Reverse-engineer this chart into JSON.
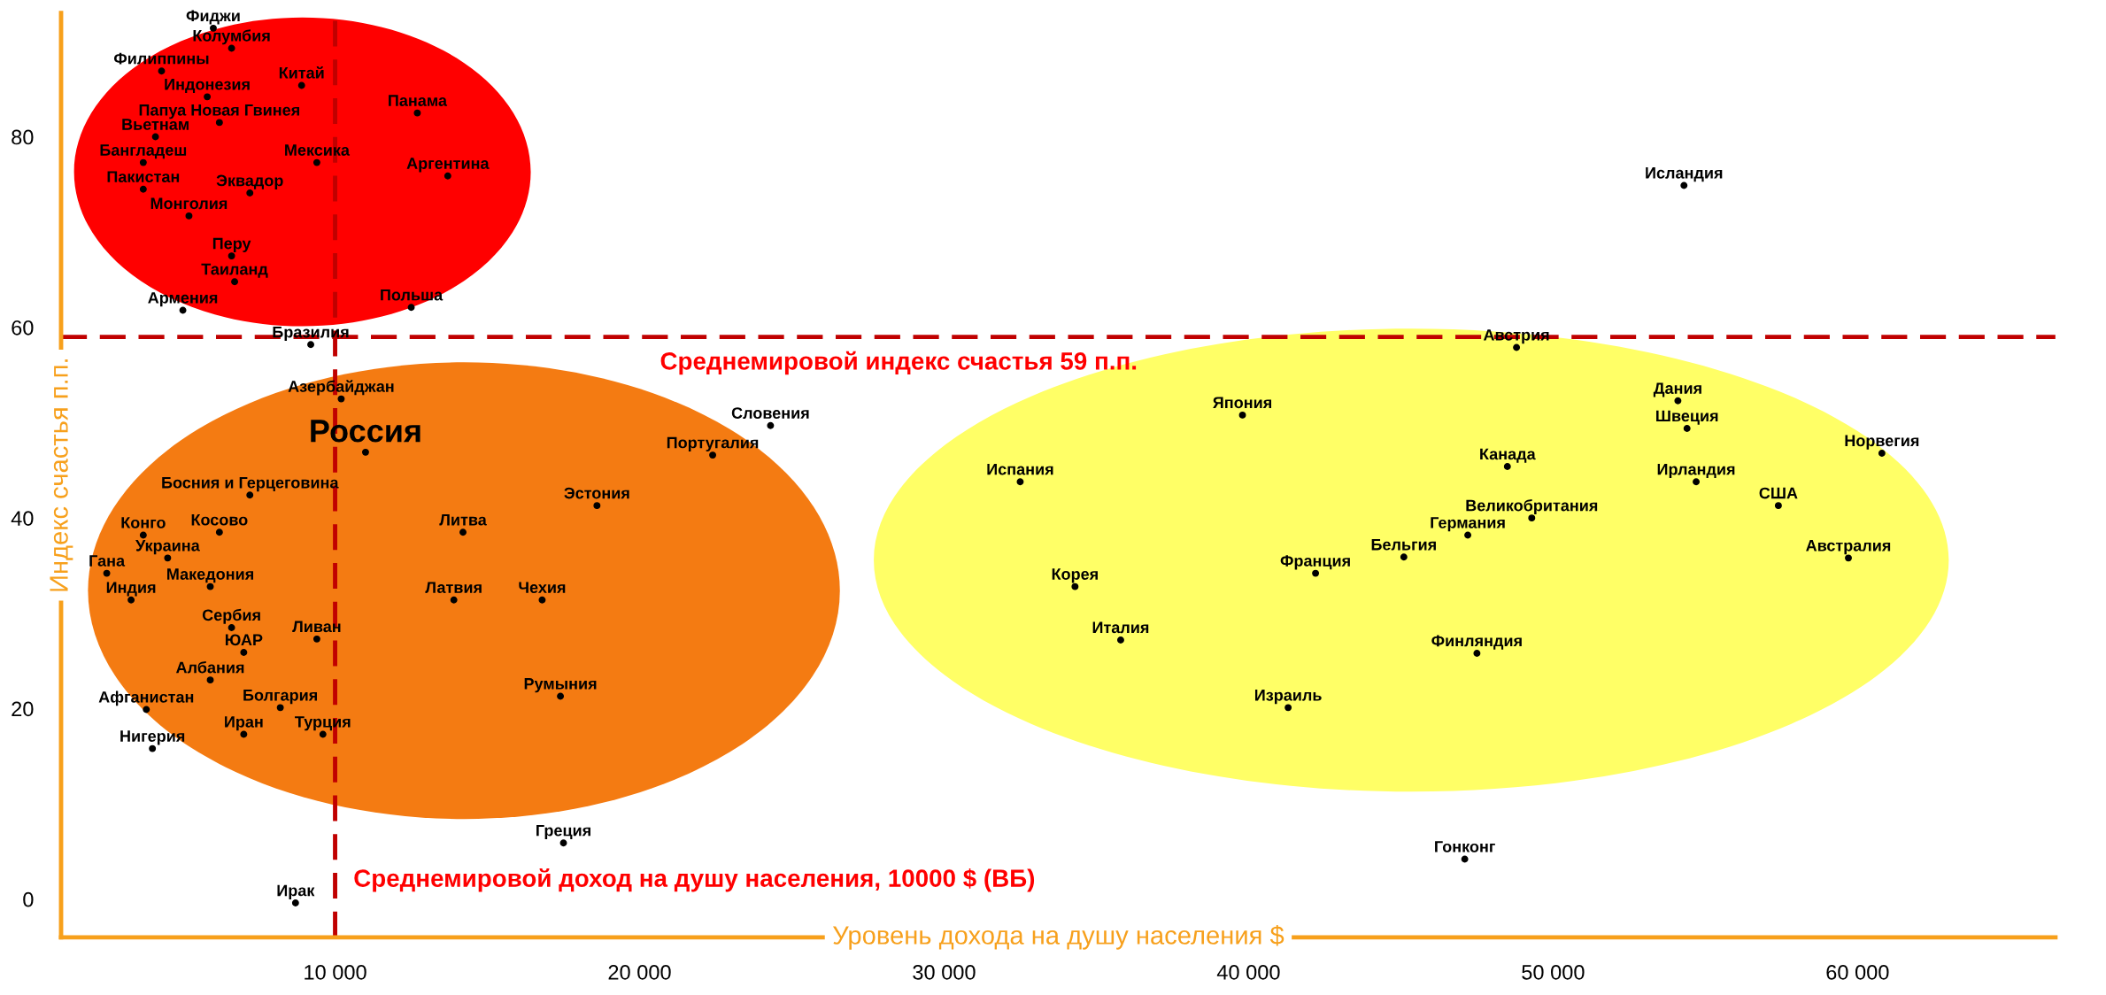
{
  "chart_data": {
    "type": "scatter",
    "xlabel": "Уровень дохода на душу населения $",
    "ylabel": "Индекс счастья п.п.",
    "xlim": [
      1000,
      66500
    ],
    "ylim": [
      -4,
      93
    ],
    "xticks": [
      {
        "value": 10000,
        "label": "10 000"
      },
      {
        "value": 20000,
        "label": "20 000"
      },
      {
        "value": 30000,
        "label": "30 000"
      },
      {
        "value": 40000,
        "label": "40 000"
      },
      {
        "value": 50000,
        "label": "50 000"
      },
      {
        "value": 60000,
        "label": "60 000"
      }
    ],
    "yticks": [
      0,
      20,
      40,
      60,
      80
    ],
    "grid": false,
    "legend": false,
    "marker": "circle",
    "ref_lines": [
      {
        "axis": "y",
        "value": 59,
        "label": "Среднемировой индекс счастья 59 п.п.",
        "color": "#c00000",
        "line_style": "dashed"
      },
      {
        "axis": "x",
        "value": 10000,
        "label": "Среднемировой доход на душу населения, 10000 $ (ВБ)",
        "color": "#c00000",
        "line_style": "dashed"
      }
    ],
    "series": [
      {
        "color": "#000000",
        "x": [
          6000,
          6600,
          4300,
          5800,
          8900,
          12700,
          6200,
          4100,
          9400,
          13700,
          3700,
          3700,
          7200,
          5200,
          6600,
          6700,
          5000,
          12500,
          54300,
          9200,
          48800,
          10200,
          39800,
          54100,
          54400,
          24300,
          22400,
          60800,
          32500,
          48500,
          54700,
          7200,
          18600,
          57400,
          49300,
          3700,
          6200,
          14200,
          47200,
          4500,
          45100,
          59700,
          2500,
          34300,
          42200,
          3300,
          5900,
          13900,
          16800,
          6600,
          9400,
          7000,
          35800,
          47500,
          5900,
          17400,
          3800,
          8200,
          41300,
          4000,
          7000,
          9600,
          17500,
          47100,
          8700
        ],
        "values": [
          91.4,
          89.3,
          86.9,
          84.2,
          85.4,
          82.5,
          81.5,
          80.0,
          77.3,
          75.9,
          77.3,
          74.5,
          74.1,
          71.7,
          67.5,
          64.8,
          61.8,
          62.1,
          74.9,
          58.2,
          57.9,
          52.5,
          50.8,
          52.3,
          49.4,
          49.7,
          46.6,
          46.8,
          43.8,
          45.4,
          43.8,
          42.4,
          41.3,
          41.3,
          40.0,
          38.2,
          38.5,
          38.5,
          38.2,
          35.8,
          35.9,
          35.8,
          34.2,
          32.8,
          34.2,
          31.4,
          32.8,
          31.4,
          31.4,
          28.5,
          27.3,
          25.9,
          27.2,
          25.8,
          23.0,
          21.3,
          19.9,
          20.1,
          20.1,
          15.8,
          17.3,
          17.3,
          5.9,
          4.2,
          -0.4
        ],
        "value_labels": [
          "Фиджи",
          "Колумбия",
          "Филиппины",
          "Индонезия",
          "Китай",
          "Панама",
          "Папуа Новая Гвинея",
          "Вьетнам",
          "Мексика",
          "Аргентина",
          "Бангладеш",
          "Пакистан",
          "Эквадор",
          "Монголия",
          "Перу",
          "Таиланд",
          "Армения",
          "Польша",
          "Исландия",
          "Бразилия",
          "Австрия",
          "Азербайджан",
          "Япония",
          "Дания",
          "Швеция",
          "Словения",
          "Португалия",
          "Норвегия",
          "Испания",
          "Канада",
          "Ирландия",
          "Босния и Герцеговина",
          "Эстония",
          "США",
          "Великобритания",
          "Конго",
          "Косово",
          "Литва",
          "Германия",
          "Украина",
          "Бельгия",
          "Австралия",
          "Гана",
          "Корея",
          "Франция",
          "Индия",
          "Македония",
          "Латвия",
          "Чехия",
          "Сербия",
          "Ливан",
          "ЮАР",
          "Италия",
          "Финляндия",
          "Албания",
          "Румыния",
          "Афганистан",
          "Болгария",
          "Израиль",
          "Нигерия",
          "Иран",
          "Турция",
          "Греция",
          "Гонконг",
          "Ирак"
        ]
      },
      {
        "color": "#000000",
        "x": [
          11000
        ],
        "values": [
          46.9
        ],
        "value_labels": [
          "Россия"
        ]
      }
    ]
  }
}
